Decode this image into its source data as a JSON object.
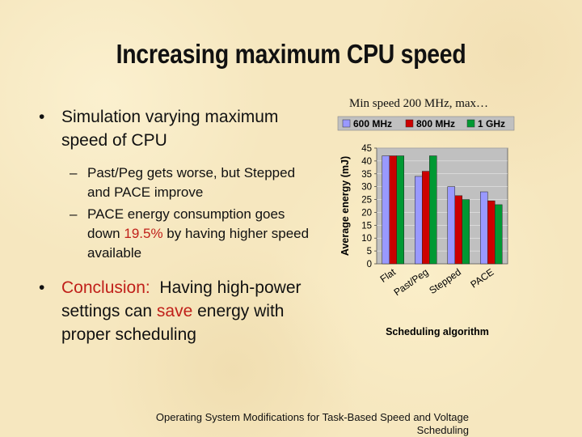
{
  "slide": {
    "title": "Increasing maximum CPU speed",
    "bullet1": "Simulation varying maximum speed of CPU",
    "sub1": "Past/Peg gets worse, but Stepped and PACE improve",
    "sub2_before": "PACE energy consumption goes down ",
    "sub2_highlight": "19.5%",
    "sub2_after": " by having higher speed available",
    "bullet2_highlight": "Conclusion:",
    "bullet2_mid": "  Having high-power settings can ",
    "bullet2_highlight2": "save",
    "bullet2_after": " energy with proper scheduling",
    "chart_caption": "Min speed 200 MHz, max…",
    "footer": "Operating System Modifications for Task-Based Speed and Voltage Scheduling",
    "bullet_glyph": "•",
    "dash_glyph": "–",
    "highlight_color": "#c0201a"
  },
  "chart_data": {
    "type": "bar",
    "title": "",
    "xlabel": "Scheduling algorithm",
    "ylabel": "Average energy (mJ)",
    "categories": [
      "Flat",
      "Past/Peg",
      "Stepped",
      "PACE"
    ],
    "series": [
      {
        "name": "600 MHz",
        "color": "#9999ff",
        "values": [
          42,
          34,
          30,
          28
        ]
      },
      {
        "name": "800 MHz",
        "color": "#cc0000",
        "values": [
          42,
          36,
          26.5,
          24.5
        ]
      },
      {
        "name": "1 GHz",
        "color": "#009933",
        "values": [
          42,
          42,
          25,
          23
        ]
      }
    ],
    "ylim": [
      0,
      45
    ],
    "yticks": [
      0,
      5,
      10,
      15,
      20,
      25,
      30,
      35,
      40,
      45
    ],
    "grid": true,
    "legend": "top",
    "plot_background": "#c0c0c0"
  }
}
